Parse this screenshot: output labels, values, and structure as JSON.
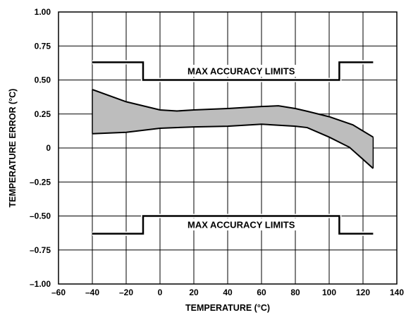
{
  "chart_data": {
    "type": "area",
    "title": "",
    "xlabel": "TEMPERATURE (°C)",
    "ylabel": "TEMPERATURE ERROR (°C)",
    "xlim": [
      -60,
      140
    ],
    "ylim": [
      -1.0,
      1.0
    ],
    "grid": true,
    "x_ticks": [
      -60,
      -40,
      -20,
      0,
      20,
      40,
      60,
      80,
      100,
      120,
      140
    ],
    "x_tick_labels": [
      "–60",
      "–40",
      "–20",
      "0",
      "20",
      "40",
      "60",
      "80",
      "100",
      "120",
      "140"
    ],
    "y_ticks": [
      1.0,
      0.75,
      0.5,
      0.25,
      0,
      -0.25,
      -0.5,
      -0.75,
      -1.0
    ],
    "y_tick_labels": [
      "1.00",
      "0.75",
      "0.50",
      "0.25",
      "0",
      "–0.25",
      "–0.50",
      "–0.75",
      "–1.00"
    ],
    "error_band": {
      "upper": {
        "x": [
          -40,
          -20,
          0,
          10,
          20,
          40,
          60,
          70,
          80,
          87,
          100,
          114,
          126
        ],
        "y": [
          0.43,
          0.34,
          0.28,
          0.272,
          0.28,
          0.29,
          0.305,
          0.31,
          0.29,
          0.27,
          0.23,
          0.17,
          0.08
        ]
      },
      "lower": {
        "x": [
          -40,
          -20,
          0,
          20,
          40,
          60,
          80,
          87,
          100,
          112,
          126
        ],
        "y": [
          0.105,
          0.115,
          0.145,
          0.155,
          0.16,
          0.175,
          0.16,
          0.15,
          0.08,
          0.005,
          -0.15
        ]
      },
      "fill_color": "#bdbdbd",
      "line_color": "#000000"
    },
    "limits": [
      {
        "label": "MAX ACCURACY LIMITS",
        "x": [
          -40,
          -10,
          -10,
          106,
          106,
          126
        ],
        "y": [
          0.63,
          0.63,
          0.5,
          0.5,
          0.63,
          0.63
        ]
      },
      {
        "label": "MAX ACCURACY LIMITS",
        "x": [
          -40,
          -10,
          -10,
          106,
          106,
          126
        ],
        "y": [
          -0.63,
          -0.63,
          -0.5,
          -0.5,
          -0.63,
          -0.63
        ]
      }
    ],
    "annotations": [
      {
        "text": "MAX ACCURACY LIMITS",
        "x": 48,
        "y": 0.565
      },
      {
        "text": "MAX ACCURACY LIMITS",
        "x": 48,
        "y": -0.565
      }
    ]
  }
}
